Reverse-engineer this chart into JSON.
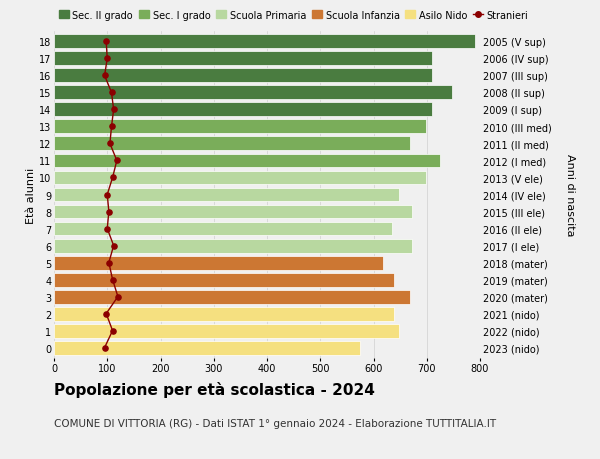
{
  "ages": [
    18,
    17,
    16,
    15,
    14,
    13,
    12,
    11,
    10,
    9,
    8,
    7,
    6,
    5,
    4,
    3,
    2,
    1,
    0
  ],
  "years": [
    "2005 (V sup)",
    "2006 (IV sup)",
    "2007 (III sup)",
    "2008 (II sup)",
    "2009 (I sup)",
    "2010 (III med)",
    "2011 (II med)",
    "2012 (I med)",
    "2013 (V ele)",
    "2014 (IV ele)",
    "2015 (III ele)",
    "2016 (II ele)",
    "2017 (I ele)",
    "2018 (mater)",
    "2019 (mater)",
    "2020 (mater)",
    "2021 (nido)",
    "2022 (nido)",
    "2023 (nido)"
  ],
  "bar_values": [
    790,
    710,
    710,
    748,
    710,
    698,
    668,
    725,
    698,
    648,
    672,
    635,
    672,
    618,
    638,
    668,
    638,
    648,
    575
  ],
  "bar_colors": [
    "#4a7c40",
    "#4a7c40",
    "#4a7c40",
    "#4a7c40",
    "#4a7c40",
    "#7aad5a",
    "#7aad5a",
    "#7aad5a",
    "#b8d8a0",
    "#b8d8a0",
    "#b8d8a0",
    "#b8d8a0",
    "#b8d8a0",
    "#cc7733",
    "#cc7733",
    "#cc7733",
    "#f5e080",
    "#f5e080",
    "#f5e080"
  ],
  "stranieri_values": [
    98,
    100,
    95,
    108,
    112,
    108,
    105,
    118,
    110,
    100,
    103,
    100,
    112,
    103,
    110,
    120,
    98,
    110,
    95
  ],
  "stranieri_color": "#8b0000",
  "title": "Popolazione per età scolastica - 2024",
  "subtitle": "COMUNE DI VITTORIA (RG) - Dati ISTAT 1° gennaio 2024 - Elaborazione TUTTITALIA.IT",
  "ylabel": "Età alunni",
  "ylabel2": "Anni di nascita",
  "xlim": [
    0,
    800
  ],
  "legend_labels": [
    "Sec. II grado",
    "Sec. I grado",
    "Scuola Primaria",
    "Scuola Infanzia",
    "Asilo Nido",
    "Stranieri"
  ],
  "legend_colors": [
    "#4a7c40",
    "#7aad5a",
    "#b8d8a0",
    "#cc7733",
    "#f5e080",
    "#8b0000"
  ],
  "bg_color": "#f0f0f0",
  "bar_height": 0.82,
  "grid_color": "#d0d0d0",
  "title_fontsize": 11,
  "subtitle_fontsize": 7.5,
  "tick_fontsize": 7,
  "label_fontsize": 8,
  "legend_fontsize": 7
}
